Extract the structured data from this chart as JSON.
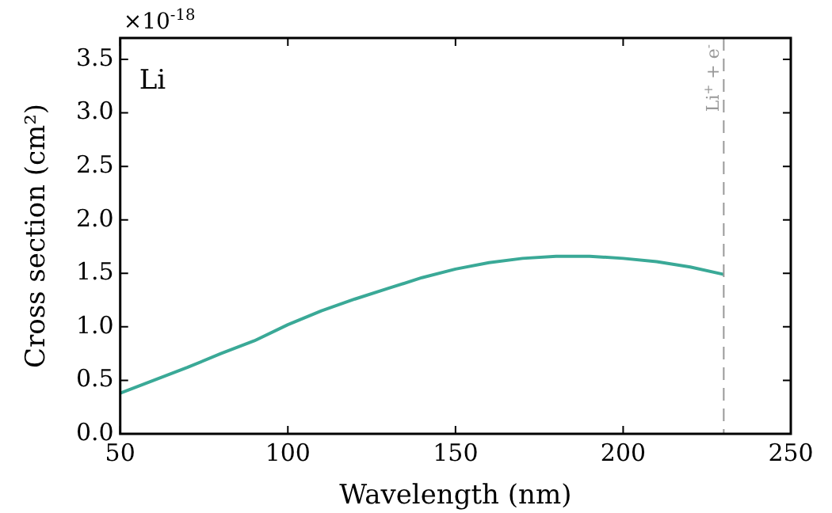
{
  "chart_data": {
    "type": "line",
    "xlabel": "Wavelength (nm)",
    "ylabel": "Cross section (cm²)",
    "x": [
      50,
      60,
      70,
      80,
      90,
      100,
      110,
      120,
      130,
      140,
      150,
      160,
      170,
      180,
      190,
      200,
      210,
      220,
      230
    ],
    "series": [
      {
        "color": "#3aa997",
        "values": [
          0.38,
          0.5,
          0.62,
          0.75,
          0.87,
          1.02,
          1.15,
          1.26,
          1.36,
          1.46,
          1.54,
          1.6,
          1.64,
          1.66,
          1.66,
          1.64,
          1.61,
          1.56,
          1.49
        ]
      }
    ],
    "xlim": [
      50,
      250
    ],
    "xticks": [
      50,
      100,
      150,
      200,
      250
    ],
    "ylim": [
      0,
      3.7
    ],
    "yticks": [
      {
        "value": 0,
        "label": "0.0"
      },
      {
        "value": 0.5,
        "label": "0.5"
      },
      {
        "value": 1,
        "label": "1.0"
      },
      {
        "value": 1.5,
        "label": "1.5"
      },
      {
        "value": 2,
        "label": "2.0"
      },
      {
        "value": 2.5,
        "label": "2.5"
      },
      {
        "value": 3,
        "label": "3.0"
      },
      {
        "value": 3.5,
        "label": "3.5"
      }
    ],
    "ref_lines": [
      {
        "axis": "x",
        "value": 230,
        "label": "Li$^{+}$ + e$^{-}$",
        "color": "#999999",
        "line_style": "dashed"
      }
    ],
    "annotations": [
      "×10$^{-18}$",
      {
        "text": "Li"
      }
    ],
    "grid": false,
    "legend": false,
    "marker": "none",
    "line_style": "solid"
  }
}
